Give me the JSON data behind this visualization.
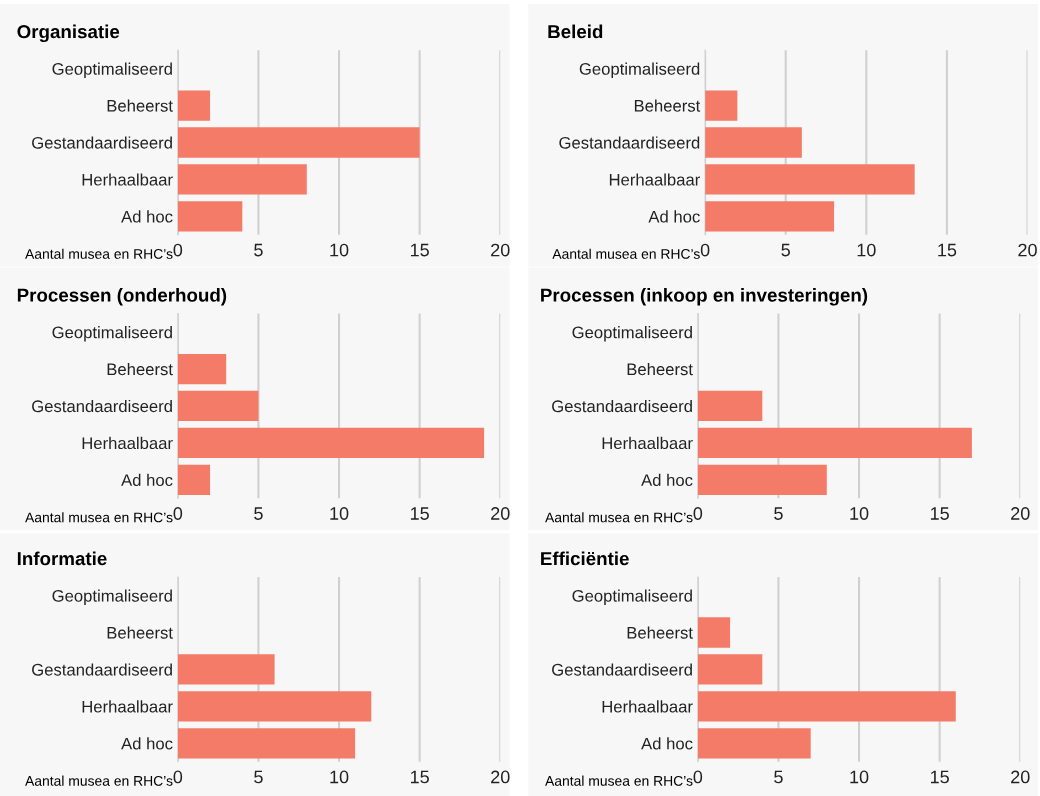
{
  "chart_data": [
    {
      "type": "bar",
      "orientation": "horizontal",
      "title": "Organisatie",
      "xlabel": "Aantal musea en RHC’s",
      "categories": [
        "Geoptimaliseerd",
        "Beheerst",
        "Gestandaardiseerd",
        "Herhaalbaar",
        "Ad hoc"
      ],
      "values": [
        0,
        2,
        15,
        8,
        4
      ],
      "color": "#f47b67",
      "xlim": [
        0,
        20
      ],
      "xticks": [
        0,
        5,
        10,
        15,
        20
      ],
      "grid": "x"
    },
    {
      "type": "bar",
      "orientation": "horizontal",
      "title": "Beleid",
      "xlabel": "Aantal musea en RHC’s",
      "categories": [
        "Geoptimaliseerd",
        "Beheerst",
        "Gestandaardiseerd",
        "Herhaalbaar",
        "Ad hoc"
      ],
      "values": [
        0,
        2,
        6,
        13,
        8
      ],
      "color": "#f47b67",
      "xlim": [
        0,
        20
      ],
      "xticks": [
        0,
        5,
        10,
        15,
        20
      ],
      "grid": "x"
    },
    {
      "type": "bar",
      "orientation": "horizontal",
      "title": "Processen (onderhoud)",
      "xlabel": "Aantal musea en RHC’s",
      "categories": [
        "Geoptimaliseerd",
        "Beheerst",
        "Gestandaardiseerd",
        "Herhaalbaar",
        "Ad hoc"
      ],
      "values": [
        0,
        3,
        5,
        19,
        2
      ],
      "color": "#f47b67",
      "xlim": [
        0,
        20
      ],
      "xticks": [
        0,
        5,
        10,
        15,
        20
      ],
      "grid": "x"
    },
    {
      "type": "bar",
      "orientation": "horizontal",
      "title": "Processen (inkoop en investeringen)",
      "xlabel": "Aantal musea en RHC’s",
      "categories": [
        "Geoptimaliseerd",
        "Beheerst",
        "Gestandaardiseerd",
        "Herhaalbaar",
        "Ad hoc"
      ],
      "values": [
        0,
        0,
        4,
        17,
        8
      ],
      "color": "#f47b67",
      "xlim": [
        0,
        20
      ],
      "xticks": [
        0,
        5,
        10,
        15,
        20
      ],
      "grid": "x"
    },
    {
      "type": "bar",
      "orientation": "horizontal",
      "title": "Informatie",
      "xlabel": "Aantal musea en RHC’s",
      "categories": [
        "Geoptimaliseerd",
        "Beheerst",
        "Gestandaardiseerd",
        "Herhaalbaar",
        "Ad hoc"
      ],
      "values": [
        0,
        0,
        6,
        12,
        11
      ],
      "color": "#f47b67",
      "xlim": [
        0,
        20
      ],
      "xticks": [
        0,
        5,
        10,
        15,
        20
      ],
      "grid": "x"
    },
    {
      "type": "bar",
      "orientation": "horizontal",
      "title": "Efficiëntie",
      "xlabel": "Aantal musea en RHC’s",
      "categories": [
        "Geoptimaliseerd",
        "Beheerst",
        "Gestandaardiseerd",
        "Herhaalbaar",
        "Ad hoc"
      ],
      "values": [
        0,
        2,
        4,
        16,
        7
      ],
      "color": "#f47b67",
      "xlim": [
        0,
        20
      ],
      "xticks": [
        0,
        5,
        10,
        15,
        20
      ],
      "grid": "x"
    }
  ]
}
